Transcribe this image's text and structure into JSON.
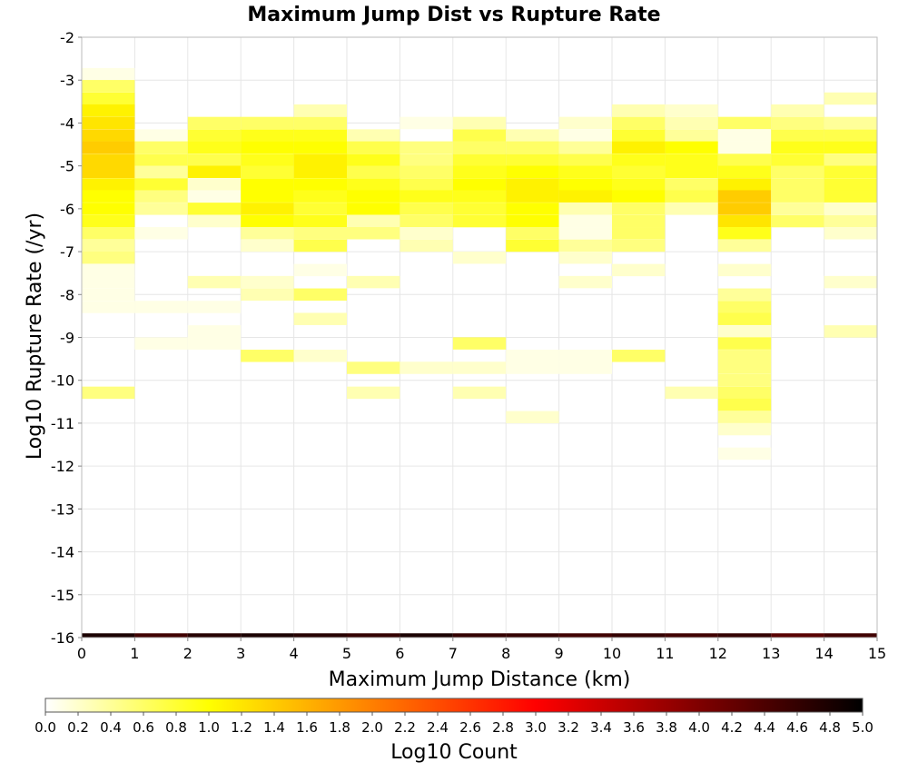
{
  "chart_data": {
    "type": "heatmap",
    "title": "Maximum Jump Dist vs Rupture Rate",
    "xlabel": "Maximum Jump Distance (km)",
    "ylabel": "Log10 Rupture Rate (/yr)",
    "xlim": [
      0,
      15
    ],
    "ylim": [
      -16,
      -2
    ],
    "x_ticks": [
      "0",
      "1",
      "2",
      "3",
      "4",
      "5",
      "6",
      "7",
      "8",
      "9",
      "10",
      "11",
      "12",
      "13",
      "14",
      "15"
    ],
    "y_ticks": [
      "-2",
      "-3",
      "-4",
      "-5",
      "-6",
      "-7",
      "-8",
      "-9",
      "-10",
      "-11",
      "-12",
      "-13",
      "-14",
      "-15",
      "-16"
    ],
    "bin_width_x": 1,
    "bin_height_y": 0.2857,
    "grid": true,
    "colorbar": {
      "label": "Log10 Count",
      "range": [
        0,
        5
      ],
      "colormap": "hot-reversed",
      "ticks": [
        "0.0",
        "0.2",
        "0.4",
        "0.6",
        "0.8",
        "1.0",
        "1.2",
        "1.4",
        "1.6",
        "1.8",
        "2.0",
        "2.2",
        "2.4",
        "2.6",
        "2.8",
        "3.0",
        "3.2",
        "3.4",
        "3.6",
        "3.8",
        "4.0",
        "4.2",
        "4.4",
        "4.6",
        "4.8",
        "5.0"
      ]
    },
    "bottom_row": {
      "y": -16,
      "values": [
        4.8,
        4.5,
        4.7,
        4.8,
        4.7,
        4.6,
        4.8,
        4.6,
        4.6,
        4.5,
        4.6,
        4.5,
        4.6,
        4.3,
        4.5
      ]
    },
    "columns": [
      {
        "x": 0,
        "cells": [
          [
            -2.86,
            0.1
          ],
          [
            -3.14,
            0.6
          ],
          [
            -3.43,
            0.8
          ],
          [
            -3.71,
            1.1
          ],
          [
            -4.0,
            1.2
          ],
          [
            -4.29,
            1.3
          ],
          [
            -4.57,
            1.4
          ],
          [
            -4.86,
            1.3
          ],
          [
            -5.14,
            1.3
          ],
          [
            -5.43,
            1.1
          ],
          [
            -5.71,
            1.0
          ],
          [
            -6.0,
            1.0
          ],
          [
            -6.29,
            0.9
          ],
          [
            -6.57,
            0.6
          ],
          [
            -6.86,
            0.4
          ],
          [
            -7.14,
            0.5
          ],
          [
            -7.43,
            0.1
          ],
          [
            -7.71,
            0.1
          ],
          [
            -8.0,
            0.1
          ],
          [
            -8.29,
            0.1
          ],
          [
            -10.29,
            0.5
          ]
        ]
      },
      {
        "x": 1,
        "cells": [
          [
            -4.29,
            0.1
          ],
          [
            -4.57,
            0.6
          ],
          [
            -4.86,
            0.7
          ],
          [
            -5.14,
            0.4
          ],
          [
            -5.43,
            0.8
          ],
          [
            -5.71,
            0.5
          ],
          [
            -6.0,
            0.4
          ],
          [
            -6.57,
            0.1
          ],
          [
            -8.29,
            0.1
          ],
          [
            -9.14,
            0.1
          ]
        ]
      },
      {
        "x": 2,
        "cells": [
          [
            -4.0,
            0.6
          ],
          [
            -4.29,
            0.8
          ],
          [
            -4.57,
            0.9
          ],
          [
            -4.86,
            0.7
          ],
          [
            -5.14,
            1.1
          ],
          [
            -5.43,
            0.2
          ],
          [
            -5.71,
            0.1
          ],
          [
            -6.0,
            0.8
          ],
          [
            -6.29,
            0.2
          ],
          [
            -7.71,
            0.3
          ],
          [
            -8.29,
            0.1
          ],
          [
            -8.86,
            0.1
          ],
          [
            -9.14,
            0.1
          ]
        ]
      },
      {
        "x": 3,
        "cells": [
          [
            -4.0,
            0.6
          ],
          [
            -4.29,
            0.9
          ],
          [
            -4.57,
            1.0
          ],
          [
            -4.86,
            0.9
          ],
          [
            -5.14,
            0.8
          ],
          [
            -5.43,
            1.0
          ],
          [
            -5.71,
            1.0
          ],
          [
            -6.0,
            1.1
          ],
          [
            -6.29,
            1.0
          ],
          [
            -6.57,
            0.4
          ],
          [
            -6.86,
            0.2
          ],
          [
            -7.71,
            0.2
          ],
          [
            -8.0,
            0.3
          ],
          [
            -9.43,
            0.6
          ]
        ]
      },
      {
        "x": 4,
        "cells": [
          [
            -3.71,
            0.3
          ],
          [
            -4.0,
            0.6
          ],
          [
            -4.29,
            0.9
          ],
          [
            -4.57,
            1.0
          ],
          [
            -4.86,
            1.1
          ],
          [
            -5.14,
            1.1
          ],
          [
            -5.43,
            1.0
          ],
          [
            -5.71,
            0.9
          ],
          [
            -6.0,
            0.8
          ],
          [
            -6.29,
            0.9
          ],
          [
            -6.57,
            0.5
          ],
          [
            -6.86,
            0.7
          ],
          [
            -7.43,
            0.1
          ],
          [
            -8.0,
            0.6
          ],
          [
            -8.57,
            0.3
          ],
          [
            -9.43,
            0.2
          ]
        ]
      },
      {
        "x": 5,
        "cells": [
          [
            -4.29,
            0.3
          ],
          [
            -4.57,
            0.7
          ],
          [
            -4.86,
            0.9
          ],
          [
            -5.14,
            0.7
          ],
          [
            -5.43,
            0.9
          ],
          [
            -5.71,
            1.0
          ],
          [
            -6.0,
            1.0
          ],
          [
            -6.29,
            0.3
          ],
          [
            -6.57,
            0.5
          ],
          [
            -7.71,
            0.3
          ],
          [
            -9.71,
            0.5
          ],
          [
            -10.29,
            0.3
          ]
        ]
      },
      {
        "x": 6,
        "cells": [
          [
            -4.0,
            0.1
          ],
          [
            -4.57,
            0.5
          ],
          [
            -4.86,
            0.5
          ],
          [
            -5.14,
            0.6
          ],
          [
            -5.43,
            0.7
          ],
          [
            -5.71,
            0.9
          ],
          [
            -6.0,
            0.7
          ],
          [
            -6.29,
            0.6
          ],
          [
            -6.57,
            0.2
          ],
          [
            -6.86,
            0.3
          ],
          [
            -9.71,
            0.2
          ]
        ]
      },
      {
        "x": 7,
        "cells": [
          [
            -4.0,
            0.3
          ],
          [
            -4.29,
            0.7
          ],
          [
            -4.57,
            0.6
          ],
          [
            -4.86,
            0.8
          ],
          [
            -5.14,
            0.9
          ],
          [
            -5.43,
            1.0
          ],
          [
            -5.71,
            0.9
          ],
          [
            -6.0,
            0.8
          ],
          [
            -6.29,
            0.8
          ],
          [
            -7.14,
            0.2
          ],
          [
            -9.14,
            0.6
          ],
          [
            -9.71,
            0.2
          ],
          [
            -10.29,
            0.3
          ]
        ]
      },
      {
        "x": 8,
        "cells": [
          [
            -4.29,
            0.3
          ],
          [
            -4.57,
            0.6
          ],
          [
            -4.86,
            0.8
          ],
          [
            -5.14,
            1.0
          ],
          [
            -5.43,
            1.1
          ],
          [
            -5.71,
            1.1
          ],
          [
            -6.0,
            1.0
          ],
          [
            -6.29,
            1.0
          ],
          [
            -6.57,
            0.6
          ],
          [
            -6.86,
            0.8
          ],
          [
            -9.43,
            0.1
          ],
          [
            -9.71,
            0.1
          ],
          [
            -10.86,
            0.2
          ]
        ]
      },
      {
        "x": 9,
        "cells": [
          [
            -4.0,
            0.2
          ],
          [
            -4.29,
            0.1
          ],
          [
            -4.57,
            0.4
          ],
          [
            -4.86,
            0.7
          ],
          [
            -5.14,
            0.9
          ],
          [
            -5.43,
            1.0
          ],
          [
            -5.71,
            1.1
          ],
          [
            -6.0,
            0.3
          ],
          [
            -6.29,
            0.1
          ],
          [
            -6.57,
            0.1
          ],
          [
            -6.86,
            0.4
          ],
          [
            -7.14,
            0.2
          ],
          [
            -7.71,
            0.2
          ],
          [
            -9.43,
            0.1
          ],
          [
            -9.71,
            0.1
          ]
        ]
      },
      {
        "x": 10,
        "cells": [
          [
            -3.71,
            0.3
          ],
          [
            -4.0,
            0.6
          ],
          [
            -4.29,
            0.8
          ],
          [
            -4.57,
            1.1
          ],
          [
            -4.86,
            0.9
          ],
          [
            -5.14,
            0.8
          ],
          [
            -5.43,
            0.9
          ],
          [
            -5.71,
            1.0
          ],
          [
            -6.0,
            0.6
          ],
          [
            -6.29,
            0.6
          ],
          [
            -6.57,
            0.6
          ],
          [
            -6.86,
            0.5
          ],
          [
            -7.43,
            0.2
          ],
          [
            -9.43,
            0.6
          ]
        ]
      },
      {
        "x": 11,
        "cells": [
          [
            -3.71,
            0.2
          ],
          [
            -4.0,
            0.3
          ],
          [
            -4.29,
            0.4
          ],
          [
            -4.57,
            1.0
          ],
          [
            -4.86,
            0.9
          ],
          [
            -5.14,
            0.9
          ],
          [
            -5.43,
            0.6
          ],
          [
            -5.71,
            0.7
          ],
          [
            -6.0,
            0.3
          ],
          [
            -10.29,
            0.3
          ]
        ]
      },
      {
        "x": 12,
        "cells": [
          [
            -4.0,
            0.6
          ],
          [
            -4.29,
            0.1
          ],
          [
            -4.57,
            0.1
          ],
          [
            -4.86,
            0.7
          ],
          [
            -5.14,
            0.9
          ],
          [
            -5.43,
            1.1
          ],
          [
            -5.71,
            1.4
          ],
          [
            -6.0,
            1.4
          ],
          [
            -6.29,
            1.2
          ],
          [
            -6.57,
            0.9
          ],
          [
            -6.86,
            0.4
          ],
          [
            -7.43,
            0.2
          ],
          [
            -8.0,
            0.4
          ],
          [
            -8.29,
            0.6
          ],
          [
            -8.57,
            0.7
          ],
          [
            -8.86,
            0.2
          ],
          [
            -9.14,
            0.7
          ],
          [
            -9.43,
            0.5
          ],
          [
            -9.71,
            0.5
          ],
          [
            -10.0,
            0.5
          ],
          [
            -10.29,
            0.6
          ],
          [
            -10.57,
            0.7
          ],
          [
            -10.86,
            0.4
          ],
          [
            -11.14,
            0.2
          ],
          [
            -11.71,
            0.1
          ]
        ]
      },
      {
        "x": 13,
        "cells": [
          [
            -3.71,
            0.3
          ],
          [
            -4.0,
            0.5
          ],
          [
            -4.29,
            0.7
          ],
          [
            -4.57,
            0.9
          ],
          [
            -4.86,
            0.8
          ],
          [
            -5.14,
            0.6
          ],
          [
            -5.43,
            0.6
          ],
          [
            -5.71,
            0.6
          ],
          [
            -6.0,
            0.4
          ],
          [
            -6.29,
            0.6
          ]
        ]
      },
      {
        "x": 14,
        "cells": [
          [
            -3.43,
            0.3
          ],
          [
            -4.0,
            0.4
          ],
          [
            -4.29,
            0.7
          ],
          [
            -4.57,
            0.9
          ],
          [
            -4.86,
            0.5
          ],
          [
            -5.14,
            0.8
          ],
          [
            -5.43,
            0.8
          ],
          [
            -5.71,
            0.8
          ],
          [
            -6.0,
            0.2
          ],
          [
            -6.29,
            0.4
          ],
          [
            -6.57,
            0.2
          ],
          [
            -7.71,
            0.2
          ],
          [
            -8.86,
            0.3
          ]
        ]
      }
    ]
  }
}
